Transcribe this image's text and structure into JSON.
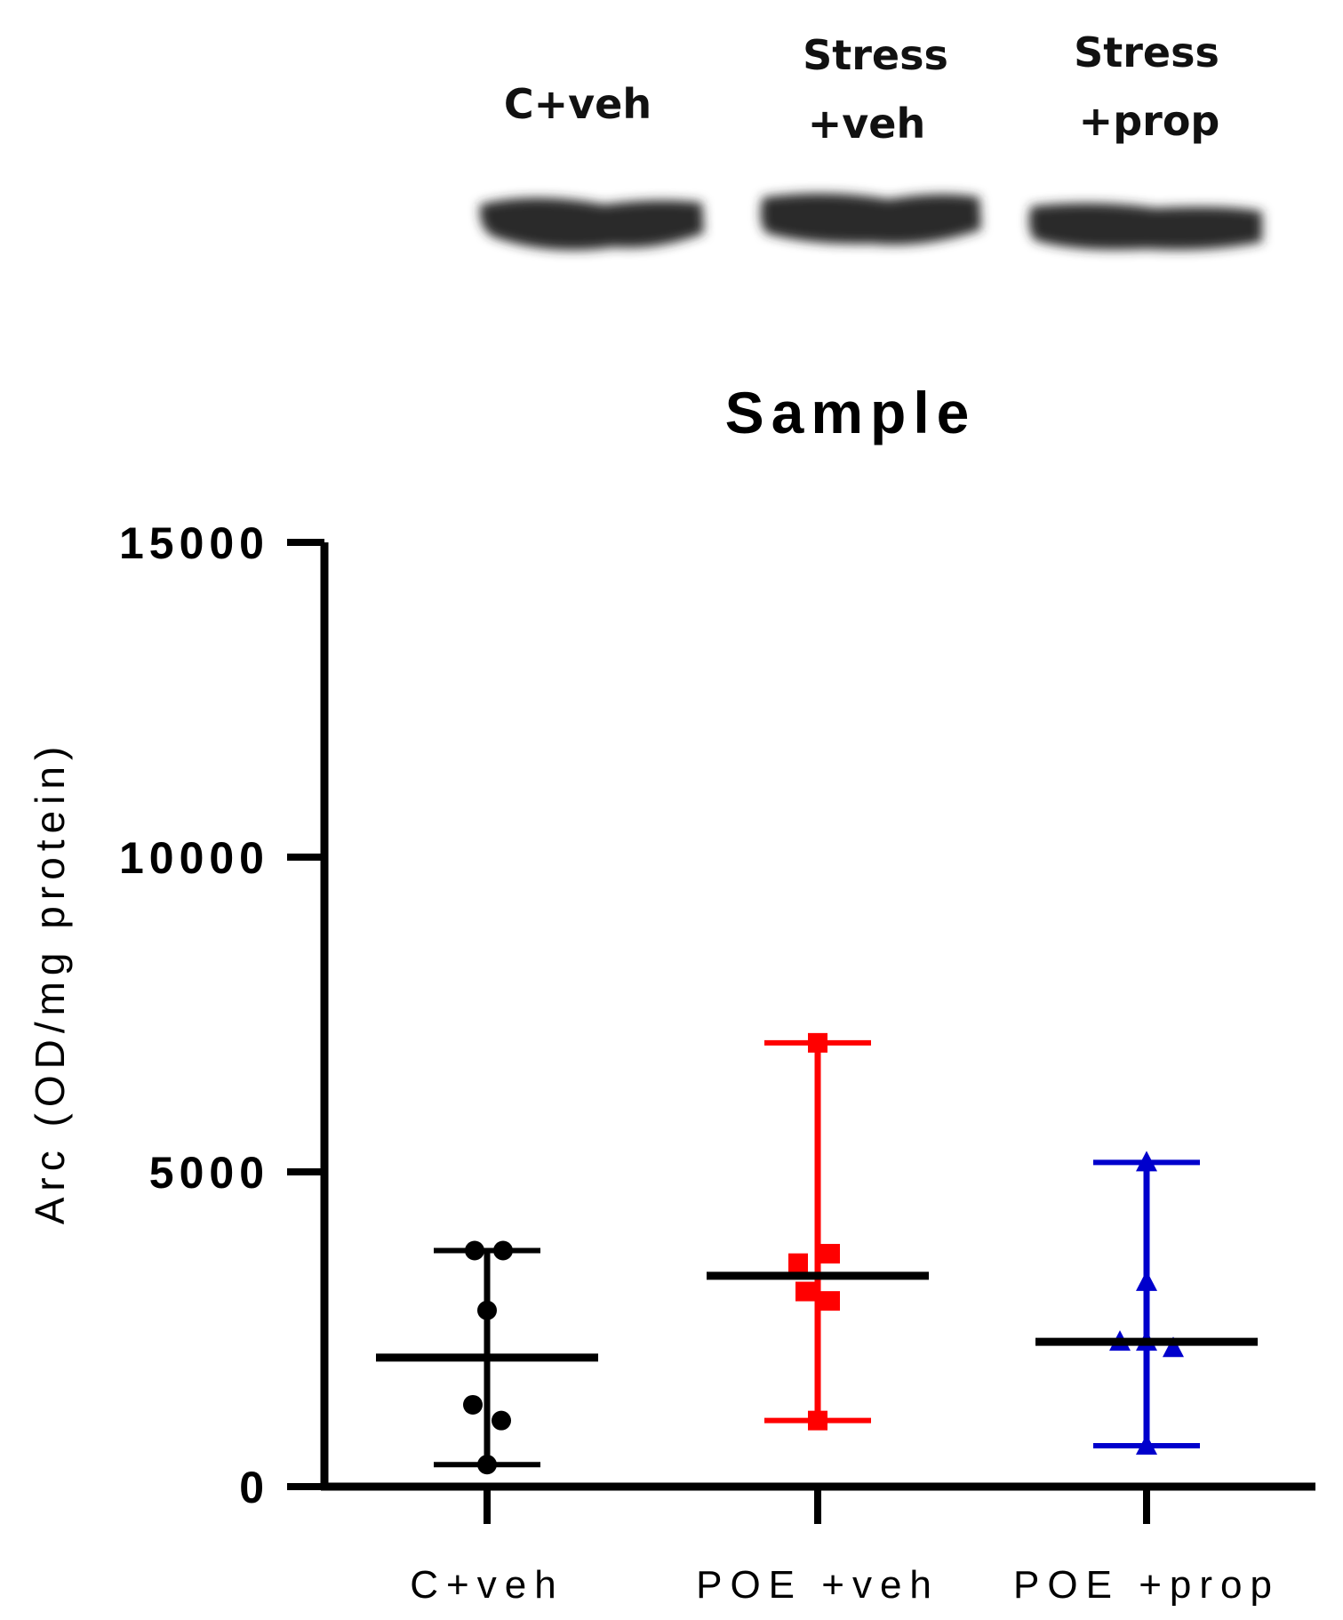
{
  "blot": {
    "lanes": [
      {
        "label_lines": [
          "C+veh"
        ]
      },
      {
        "label_lines": [
          "Stress",
          "+veh"
        ]
      },
      {
        "label_lines": [
          "Stress",
          "+prop"
        ]
      }
    ]
  },
  "chart_data": {
    "type": "scatter",
    "title": "Sample",
    "xlabel": "",
    "ylabel": "Arc (OD/mg protein)",
    "ylim": [
      0,
      15000
    ],
    "yticks": [
      0,
      5000,
      10000,
      15000
    ],
    "ytick_labels": [
      "0",
      "5000",
      "10000",
      "15000"
    ],
    "grid": false,
    "categories": [
      "C+veh",
      "POE +veh",
      "POE +prop"
    ],
    "series": [
      {
        "category": "C+veh",
        "color": "#000000",
        "marker": "circle",
        "points": [
          3750,
          3750,
          2800,
          1300,
          1050,
          350
        ],
        "median": 2050,
        "range": [
          350,
          3750
        ]
      },
      {
        "category": "POE +veh",
        "color": "#ff0000",
        "marker": "square",
        "points": [
          7050,
          3700,
          3550,
          3100,
          2950,
          1050
        ],
        "median": 3350,
        "range": [
          1050,
          7050
        ]
      },
      {
        "category": "POE +prop",
        "color": "#0000cc",
        "marker": "triangle",
        "points": [
          5150,
          3250,
          2300,
          2300,
          2200,
          650
        ],
        "median": 2300,
        "range": [
          650,
          5150
        ]
      }
    ]
  }
}
